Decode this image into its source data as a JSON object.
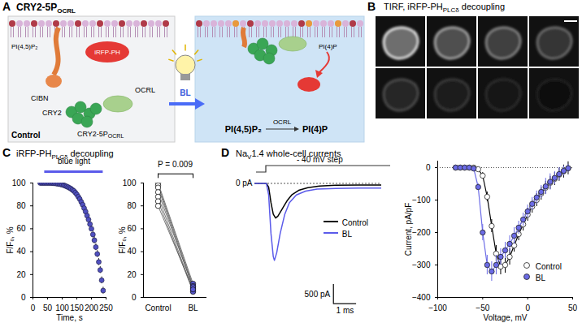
{
  "panels": {
    "A": {
      "label": "A",
      "title": {
        "text": "CRY2-5P",
        "sub": "OCRL"
      },
      "lipid": "PI(4,5)P₂",
      "cibn": "CIBN",
      "iRFP": "iRFP-PH",
      "cry2": "CRY2",
      "ocrl": "OCRL",
      "construct": {
        "text": "CRY2-5P",
        "sub": "OCRL"
      },
      "control": "Control",
      "light": "BL",
      "pi4p": "PI(4)P",
      "enzyme": "OCRL",
      "reaction": [
        "PI(4,5)P₂",
        "PI(4)P"
      ]
    },
    "B": {
      "label": "B",
      "title": [
        [
          "TIRF, iRFP-PH",
          false
        ],
        [
          "PLCδ",
          true
        ],
        [
          " decoupling",
          false
        ]
      ]
    },
    "C": {
      "label": "C",
      "title": [
        [
          "iRFP-PH",
          false
        ],
        [
          "PLCδ",
          true
        ],
        [
          " decoupling",
          false
        ]
      ]
    },
    "D": {
      "label": "D",
      "title": [
        [
          "Na",
          false
        ],
        [
          "V",
          true
        ],
        [
          "1.4 whole-cell currents",
          false
        ]
      ]
    }
  },
  "chart_data": [
    {
      "type": "scatter",
      "xlabel": "Time, s",
      "ylabel": "F/Fₒ, %",
      "xlim": [
        0,
        250
      ],
      "xticks": [
        0,
        50,
        100,
        150,
        200,
        250
      ],
      "ylim": [
        0,
        100
      ],
      "yticks": [
        0,
        20,
        40,
        60,
        80,
        100
      ],
      "color": "#5050c0",
      "x": [
        25,
        30,
        35,
        40,
        45,
        50,
        55,
        60,
        65,
        70,
        75,
        80,
        85,
        90,
        95,
        100,
        105,
        110,
        115,
        120,
        125,
        130,
        135,
        140,
        145,
        150,
        155,
        160,
        165,
        170,
        175,
        180,
        185,
        190,
        195,
        200,
        205,
        210,
        215,
        220,
        225,
        230,
        235,
        240
      ],
      "values": [
        100,
        100,
        100,
        100,
        100,
        100,
        100,
        100,
        99.9,
        99.8,
        99.7,
        99.5,
        99.3,
        99.1,
        98.8,
        98.5,
        98.1,
        97.6,
        97,
        96.4,
        95.7,
        95,
        94,
        93,
        91.6,
        90,
        88,
        86,
        83.5,
        81,
        78,
        75,
        71.5,
        68,
        64,
        60,
        55,
        50,
        44,
        38,
        31,
        24,
        15,
        6
      ],
      "errors": [
        0.3,
        0.3,
        0.3,
        0.3,
        0.3,
        0.3,
        0.3,
        0.3,
        0.5,
        0.5,
        0.5,
        0.5,
        0.5,
        0.5,
        0.5,
        0.5,
        1,
        1,
        1,
        1,
        1,
        1,
        1,
        1,
        1,
        1,
        2,
        2,
        2,
        2,
        2,
        2,
        2,
        2,
        2,
        2,
        3,
        3,
        3,
        3,
        3,
        3,
        3,
        3
      ],
      "annotation": {
        "text": "blue light",
        "x1": 40,
        "x2": 240,
        "color": "#5b5bea"
      }
    },
    {
      "type": "paired",
      "ylabel": "F/Fₒ, %",
      "ylim": [
        0,
        100
      ],
      "yticks": [
        0,
        20,
        40,
        60,
        80,
        100
      ],
      "categories": [
        "Control",
        "BL"
      ],
      "colors": [
        "#ffffff",
        "#5a5ad6"
      ],
      "pairs": [
        [
          100,
          12
        ],
        [
          98,
          10
        ],
        [
          96,
          8
        ],
        [
          92,
          9
        ],
        [
          88,
          6
        ],
        [
          84,
          5
        ],
        [
          80,
          7
        ]
      ],
      "annotation": "P = 0.009"
    },
    {
      "type": "line",
      "tick_labels": false,
      "xlim": [
        -0.5,
        5
      ],
      "ylim": [
        -3300,
        200
      ],
      "baseline": 0,
      "zero_label": "0 pA",
      "protocol": "- 40 mV step",
      "series": [
        {
          "name": "Control",
          "color": "#000000",
          "x": [
            -0.5,
            0,
            0.1,
            0.2,
            0.3,
            0.4,
            0.5,
            0.7,
            0.9,
            1.1,
            1.4,
            1.8,
            2.3,
            3,
            4,
            5
          ],
          "values": [
            0,
            0,
            -100,
            -500,
            -800,
            -900,
            -850,
            -650,
            -450,
            -300,
            -180,
            -110,
            -70,
            -50,
            -40,
            -40
          ]
        },
        {
          "name": "BL",
          "color": "#5b5bea",
          "x": [
            -0.5,
            0,
            0.1,
            0.2,
            0.3,
            0.35,
            0.45,
            0.6,
            0.8,
            1,
            1.3,
            1.7,
            2.2,
            3,
            4,
            5
          ],
          "values": [
            0,
            0,
            -300,
            -1300,
            -1900,
            -2000,
            -1800,
            -1300,
            -800,
            -500,
            -300,
            -200,
            -150,
            -130,
            -120,
            -120
          ]
        }
      ],
      "scale_bars": [
        {
          "value": 500,
          "label": "500 pA",
          "axis": "y"
        },
        {
          "value": 1,
          "label": "1 ms",
          "axis": "x"
        }
      ]
    },
    {
      "type": "scatter",
      "xlabel": "Voltage, mV",
      "ylabel": "Current, pA/pF",
      "xlim": [
        -100,
        50
      ],
      "xticks": [
        -100,
        -50,
        0,
        50
      ],
      "ylim": [
        -400,
        20
      ],
      "yticks": [
        -400,
        -300,
        -200,
        -100,
        0
      ],
      "baseline": 0,
      "legend": "lower right",
      "series": [
        {
          "name": "Control",
          "color": "#000000",
          "marker": "open circle",
          "x": [
            -80,
            -75,
            -70,
            -65,
            -60,
            -55,
            -50,
            -45,
            -40,
            -35,
            -30,
            -25,
            -20,
            -15,
            -10,
            -5,
            0,
            5,
            10,
            15,
            20,
            25,
            30,
            35,
            40,
            45
          ],
          "values": [
            0,
            0,
            0,
            0,
            0,
            -5,
            -25,
            -90,
            -180,
            -265,
            -305,
            -300,
            -275,
            -240,
            -205,
            -175,
            -145,
            -120,
            -100,
            -80,
            -62,
            -47,
            -35,
            -22,
            -12,
            -2
          ],
          "errors": [
            0,
            0,
            0,
            0,
            0,
            5,
            10,
            15,
            20,
            25,
            25,
            25,
            25,
            20,
            20,
            20,
            20,
            20,
            20,
            20,
            20,
            20,
            20,
            20,
            20,
            20
          ]
        },
        {
          "name": "BL",
          "color": "#6b6be6",
          "marker": "filled circle",
          "x": [
            -80,
            -75,
            -70,
            -65,
            -60,
            -55,
            -50,
            -45,
            -40,
            -35,
            -30,
            -25,
            -20,
            -15,
            -10,
            -5,
            0,
            5,
            10,
            15,
            20,
            25,
            30,
            35,
            40,
            45
          ],
          "values": [
            0,
            0,
            0,
            0,
            -3,
            -60,
            -200,
            -300,
            -320,
            -300,
            -275,
            -255,
            -235,
            -210,
            -185,
            -160,
            -135,
            -112,
            -92,
            -75,
            -58,
            -44,
            -32,
            -20,
            -10,
            -2
          ],
          "errors": [
            0,
            0,
            0,
            0,
            3,
            10,
            25,
            30,
            30,
            30,
            25,
            25,
            25,
            25,
            20,
            20,
            20,
            20,
            20,
            20,
            25,
            25,
            20,
            20,
            15,
            12
          ]
        }
      ]
    }
  ]
}
